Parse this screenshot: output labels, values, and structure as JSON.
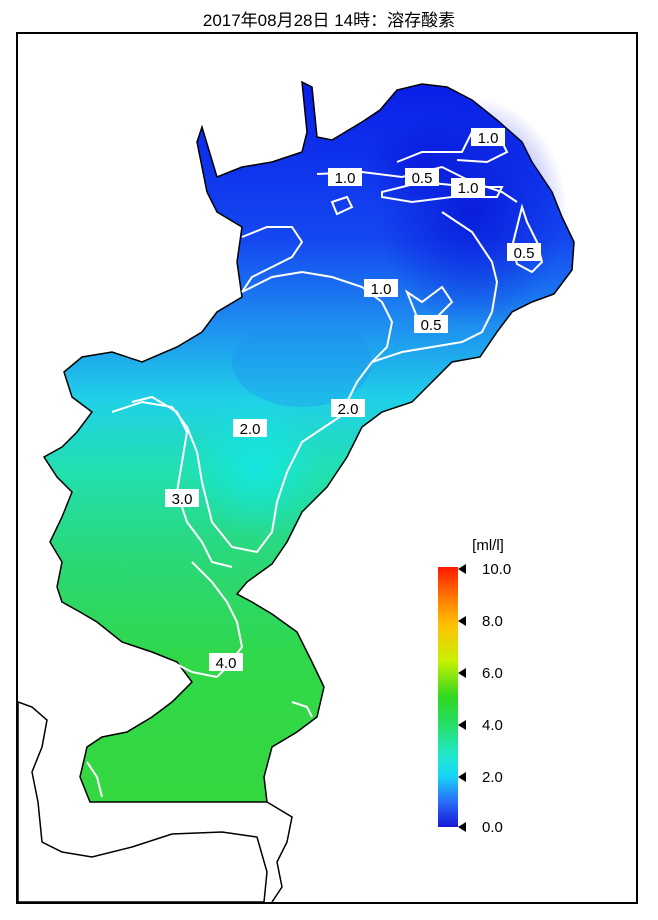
{
  "title": "2017年08月28日 14時：溶存酸素",
  "legend": {
    "unit": "[ml/l]",
    "ticks": [
      "10.0",
      "8.0",
      "6.0",
      "4.0",
      "2.0",
      "0.0"
    ],
    "gradient_colors": [
      "#ff1a00",
      "#ffb000",
      "#d8f000",
      "#28d820",
      "#20e8b0",
      "#18d8f8",
      "#2870f8",
      "#1818d8"
    ]
  },
  "contour_labels": [
    "1.0",
    "0.5",
    "1.0",
    "1.0",
    "0.5",
    "1.0",
    "0.5",
    "2.0",
    "2.0",
    "3.0",
    "4.0"
  ],
  "colors": {
    "land": "#ffffff",
    "coast": "#000000",
    "contour": "#ffffff"
  }
}
